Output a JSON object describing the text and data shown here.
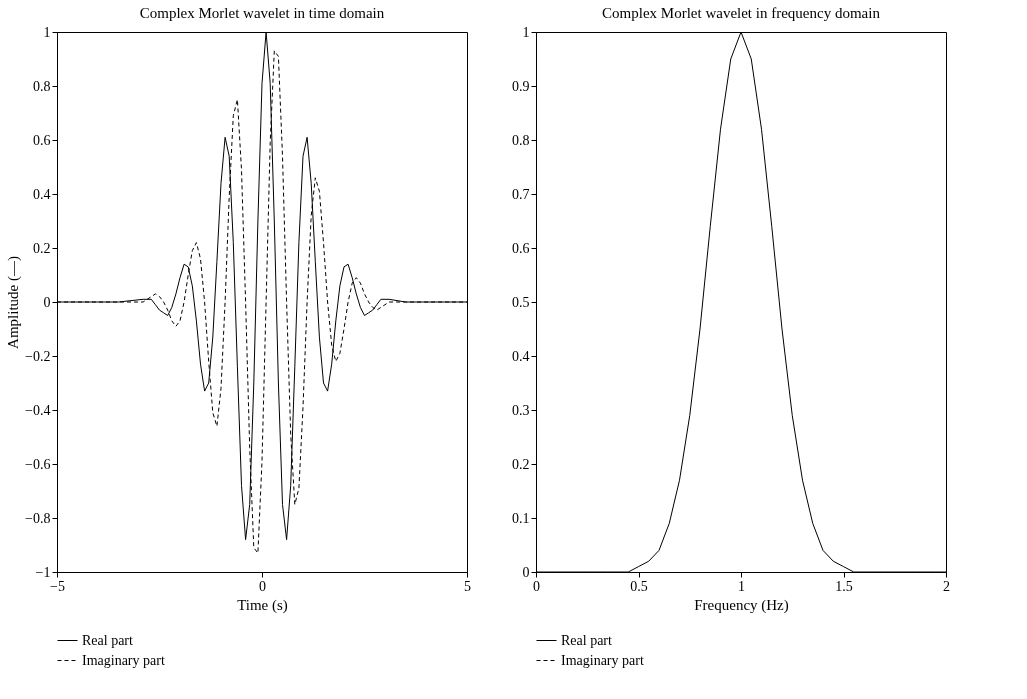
{
  "chart_data": [
    {
      "type": "line",
      "title": "Complex Morlet wavelet in time domain",
      "xlabel": "Time (s)",
      "ylabel": "Amplitude (—)",
      "x": [
        -5,
        -4,
        -3.5,
        -2.9,
        -2.8,
        -2.7,
        -2.6,
        -2.5,
        -2.4,
        -2.3,
        -2.2,
        -2.1,
        -2,
        -1.9,
        -1.8,
        -1.7,
        -1.6,
        -1.5,
        -1.4,
        -1.3,
        -1.2,
        -1.1,
        -1,
        -0.9,
        -0.8,
        -0.7,
        -0.6,
        -0.5,
        -0.4,
        -0.3,
        -0.2,
        -0.1,
        0,
        0.1,
        0.2,
        0.3,
        0.4,
        0.5,
        0.6,
        0.7,
        0.8,
        0.9,
        1,
        1.1,
        1.2,
        1.3,
        1.4,
        1.5,
        1.6,
        1.7,
        1.8,
        1.9,
        2,
        2.1,
        2.2,
        2.3,
        2.4,
        2.5,
        2.6,
        2.7,
        2.8,
        2.9,
        3,
        3.1,
        3.5,
        4,
        5
      ],
      "series": [
        {
          "name": "Real part",
          "color": "#000000",
          "line_style": "solid",
          "values": [
            0,
            0,
            0,
            0.01,
            0.01,
            0.01,
            -0.01,
            -0.03,
            -0.04,
            -0.05,
            -0.02,
            0.03,
            0.09,
            0.14,
            0.13,
            0.06,
            -0.07,
            -0.23,
            -0.33,
            -0.3,
            -0.13,
            0.15,
            0.44,
            0.61,
            0.54,
            0.22,
            -0.24,
            -0.68,
            -0.88,
            -0.75,
            -0.3,
            0.3,
            0.81,
            1,
            0.81,
            0.3,
            -0.3,
            -0.75,
            -0.88,
            -0.68,
            -0.24,
            0.22,
            0.54,
            0.61,
            0.44,
            0.15,
            -0.13,
            -0.3,
            -0.33,
            -0.23,
            -0.07,
            0.06,
            0.13,
            0.14,
            0.09,
            0.03,
            -0.02,
            -0.05,
            -0.04,
            -0.03,
            -0.01,
            0.01,
            0.01,
            0.01,
            0,
            0,
            0
          ]
        },
        {
          "name": "Imaginary part",
          "color": "#000000",
          "line_style": "dashed",
          "values": [
            0,
            0,
            0,
            0,
            0.01,
            0.02,
            0.03,
            0.02,
            0,
            -0.03,
            -0.07,
            -0.09,
            -0.07,
            0,
            0.1,
            0.19,
            0.22,
            0.16,
            0,
            -0.22,
            -0.41,
            -0.46,
            -0.32,
            0,
            0.39,
            0.69,
            0.75,
            0.49,
            0,
            -0.54,
            -0.91,
            -0.93,
            -0.59,
            0,
            0.59,
            0.93,
            0.91,
            0.54,
            0,
            -0.49,
            -0.75,
            -0.69,
            -0.39,
            0,
            0.32,
            0.46,
            0.41,
            0.22,
            0,
            -0.16,
            -0.22,
            -0.19,
            -0.1,
            0,
            0.07,
            0.09,
            0.07,
            0.03,
            0,
            -0.02,
            -0.03,
            -0.02,
            -0.01,
            0,
            0,
            0,
            0
          ]
        }
      ],
      "xlim": [
        -5,
        5
      ],
      "xticks": [
        {
          "value": -5,
          "label": "−5"
        },
        0,
        5
      ],
      "ylim": [
        -1,
        1
      ],
      "yticks": [
        {
          "value": -1,
          "label": "−1"
        },
        {
          "value": -0.8,
          "label": "−0.8"
        },
        {
          "value": -0.6,
          "label": "−0.6"
        },
        {
          "value": -0.4,
          "label": "−0.4"
        },
        {
          "value": -0.2,
          "label": "−0.2"
        },
        0,
        0.2,
        0.4,
        0.6,
        0.8,
        1
      ],
      "grid": false,
      "legend": "bottom"
    },
    {
      "type": "line",
      "title": "Complex Morlet wavelet in frequency domain",
      "xlabel": "Frequency (Hz)",
      "x": [
        0,
        0.05,
        0.1,
        0.15,
        0.2,
        0.25,
        0.3,
        0.35,
        0.4,
        0.45,
        0.5,
        0.55,
        0.6,
        0.65,
        0.7,
        0.75,
        0.8,
        0.85,
        0.9,
        0.95,
        1,
        1.05,
        1.1,
        1.15,
        1.2,
        1.25,
        1.3,
        1.35,
        1.4,
        1.45,
        1.5,
        1.55,
        1.6,
        1.65,
        1.7,
        1.75,
        1.8,
        1.85,
        1.9,
        1.95,
        2
      ],
      "series": [
        {
          "name": "Real part",
          "color": "#000000",
          "line_style": "solid",
          "values": [
            0,
            0,
            0,
            0,
            0,
            0,
            0,
            0,
            0,
            0,
            0.01,
            0.02,
            0.04,
            0.09,
            0.17,
            0.29,
            0.45,
            0.64,
            0.82,
            0.95,
            1,
            0.95,
            0.82,
            0.64,
            0.45,
            0.29,
            0.17,
            0.09,
            0.04,
            0.02,
            0.01,
            0,
            0,
            0,
            0,
            0,
            0,
            0,
            0,
            0,
            0
          ]
        },
        {
          "name": "Imaginary part",
          "color": "#000000",
          "line_style": "dashed",
          "values": [
            null,
            null,
            null,
            null,
            null,
            null,
            null,
            null,
            null,
            null,
            null,
            null,
            null,
            null,
            null,
            null,
            null,
            null,
            null,
            null,
            null,
            null,
            null,
            null,
            null,
            null,
            null,
            null,
            null,
            null,
            null,
            null,
            null,
            null,
            null,
            null,
            null,
            null,
            null,
            null,
            null
          ]
        }
      ],
      "xlim": [
        0,
        2
      ],
      "xticks": [
        0,
        0.5,
        1,
        1.5,
        2
      ],
      "ylim": [
        0,
        1
      ],
      "yticks": [
        0,
        0.1,
        0.2,
        0.3,
        0.4,
        0.5,
        0.6,
        0.7,
        0.8,
        0.9,
        1
      ],
      "grid": false,
      "legend": "bottom"
    }
  ]
}
